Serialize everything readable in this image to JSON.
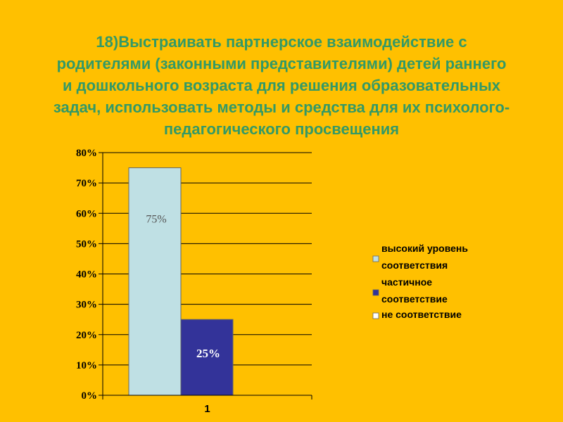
{
  "title_lines": [
    "18)Выстраивать партнерское взаимодействие с",
    "родителями (законными представителями) детей раннего",
    "и дошкольного возраста для решения  образовательных",
    "задач, использовать методы и средства для их психолого-",
    "педагогического просвещения"
  ],
  "chart_data": {
    "type": "bar",
    "categories": [
      "1"
    ],
    "series": [
      {
        "name": "высокий уровень соответствия",
        "values": [
          75
        ],
        "label": "75%",
        "color": "#BFE0E4"
      },
      {
        "name": "частичное соответствие",
        "values": [
          25
        ],
        "label": "25%",
        "color": "#333399"
      },
      {
        "name": "не соответствие",
        "values": [
          0
        ],
        "label": "",
        "color": "#FFFFFF"
      }
    ],
    "ylim": [
      0,
      80
    ],
    "yticks": [
      "0%",
      "10%",
      "20%",
      "30%",
      "40%",
      "50%",
      "60%",
      "70%",
      "80%"
    ],
    "grid": true,
    "legend_position": "right",
    "legend_lines": [
      [
        "высокий уровень",
        "соответствия"
      ],
      [
        "частичное",
        "соответствие"
      ],
      [
        "не соответствие"
      ]
    ]
  },
  "colors": {
    "background": "#FFC000",
    "title": "#339966",
    "gridline": "#000000",
    "label_75": "#555555",
    "label_25": "#FFFFFF"
  }
}
